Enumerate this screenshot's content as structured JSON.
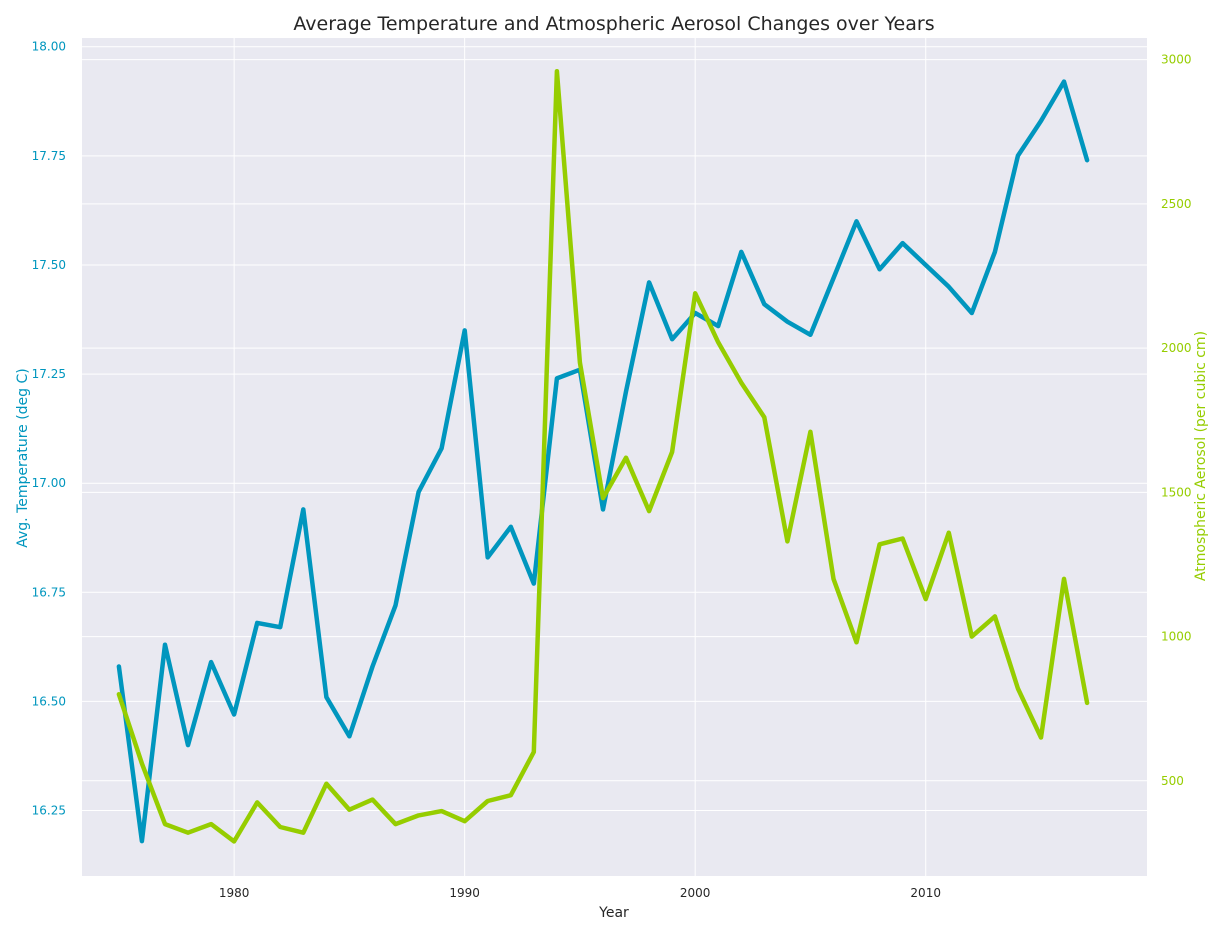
{
  "chart_data": {
    "type": "line",
    "title": "Average Temperature and Atmospheric Aerosol Changes over Years",
    "xlabel": "Year",
    "ylabel_left": "Avg. Temperature (deg C)",
    "ylabel_right": "Atmospheric Aerosol (per cubic cm)",
    "xlim": [
      1973.4,
      2019.6
    ],
    "ylim_left": [
      16.1,
      18.02
    ],
    "ylim_right": [
      170,
      3075
    ],
    "x_ticks": [
      1980,
      1990,
      2000,
      2010
    ],
    "y_ticks_left": [
      "16.25",
      "16.50",
      "16.75",
      "17.00",
      "17.25",
      "17.50",
      "17.75",
      "18.00"
    ],
    "y_ticks_right": [
      "500",
      "1000",
      "1500",
      "2000",
      "2500",
      "3000"
    ],
    "grid": true,
    "x": [
      1975,
      1976,
      1977,
      1978,
      1979,
      1980,
      1981,
      1982,
      1983,
      1984,
      1985,
      1986,
      1987,
      1988,
      1989,
      1990,
      1991,
      1992,
      1993,
      1994,
      1995,
      1996,
      1997,
      1998,
      1999,
      2000,
      2001,
      2002,
      2003,
      2004,
      2005,
      2006,
      2007,
      2008,
      2009,
      2010,
      2011,
      2012,
      2013,
      2014,
      2015,
      2016,
      2017
    ],
    "series": [
      {
        "axis": "left",
        "color": "#0096be",
        "values": [
          16.58,
          16.18,
          16.63,
          16.4,
          16.59,
          16.47,
          16.68,
          16.67,
          16.94,
          16.51,
          16.42,
          16.58,
          16.72,
          16.98,
          17.08,
          17.35,
          16.83,
          16.9,
          16.77,
          17.24,
          17.26,
          16.94,
          17.21,
          17.46,
          17.33,
          17.39,
          17.36,
          17.53,
          17.41,
          17.37,
          17.34,
          17.47,
          17.6,
          17.49,
          17.55,
          17.5,
          17.45,
          17.39,
          17.53,
          17.75,
          17.83,
          17.92,
          17.74
        ]
      },
      {
        "axis": "right",
        "color": "#96cd00",
        "values": [
          800,
          560,
          350,
          320,
          350,
          290,
          425,
          340,
          320,
          490,
          400,
          435,
          350,
          380,
          395,
          360,
          430,
          450,
          600,
          2960,
          1950,
          1480,
          1620,
          1435,
          1640,
          2190,
          2020,
          1880,
          1760,
          1330,
          1710,
          1200,
          980,
          1320,
          1340,
          1130,
          1360,
          1000,
          1070,
          820,
          650,
          1200,
          770
        ]
      }
    ],
    "colors": {
      "plot_bg": "#e9e9f1",
      "grid": "#ffffff",
      "temperature": "#0096be",
      "aerosol": "#96cd00",
      "text": "#262626"
    }
  }
}
